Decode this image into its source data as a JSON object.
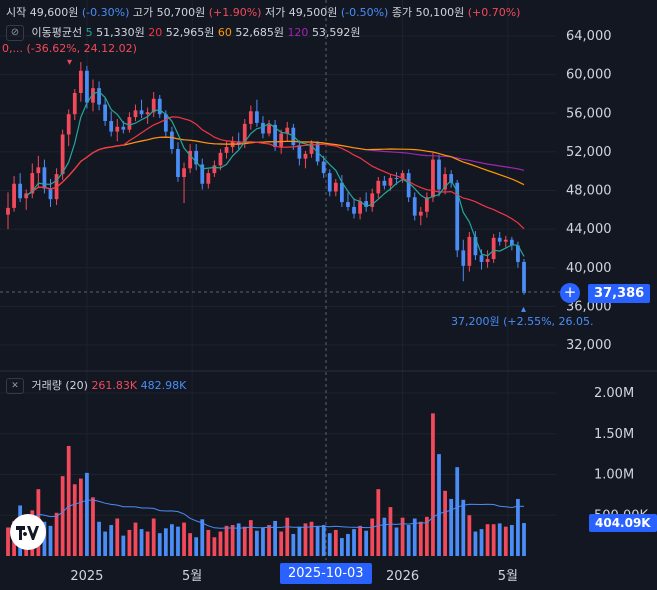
{
  "ohlc_bar": {
    "open_label": "시작",
    "open": "49,600원",
    "open_chg": "(-0.30%)",
    "high_label": "고가",
    "high": "50,700원",
    "high_chg": "(+1.90%)",
    "low_label": "저가",
    "low": "49,500원",
    "low_chg": "(-0.50%)",
    "close_label": "종가",
    "close": "50,100원",
    "close_chg": "(+0.70%)"
  },
  "ma_legend": {
    "title": "이동평균선",
    "items": [
      {
        "period": "5",
        "value": "51,330원",
        "color": "#26a69a"
      },
      {
        "period": "20",
        "value": "52,965원",
        "color": "#f23645"
      },
      {
        "period": "60",
        "value": "52,685원",
        "color": "#ff9800"
      },
      {
        "period": "120",
        "value": "53,592원",
        "color": "#9c27b0"
      }
    ]
  },
  "high_note": "0,... (-36.62%, 24.12.02)",
  "low_note": "37,200원 (+2.55%, 26.05.",
  "current_price": "37,386",
  "volume_legend": {
    "title": "거래량 (20)",
    "value1": "261.83K",
    "value2": "482.98K"
  },
  "volume_badge": "404.09K",
  "crosshair_date": "2025-10-03",
  "x_labels": [
    {
      "text": "2025",
      "date": "2025-01"
    },
    {
      "text": "5월",
      "date": "2025-05"
    },
    {
      "text": "2026",
      "date": "2026-01"
    },
    {
      "text": "5월",
      "date": "2026-05"
    }
  ],
  "price_axis": [
    "64,000",
    "60,000",
    "56,000",
    "52,000",
    "48,000",
    "44,000",
    "40,000",
    "36,000",
    "32,000"
  ],
  "volume_axis": [
    "2.00M",
    "1.50M",
    "1.00M",
    "500.00K"
  ],
  "colors": {
    "up": "#f24a5a",
    "down": "#4a8df7",
    "ma5": "#26a69a",
    "ma20": "#f23645",
    "ma60": "#ff9800",
    "ma120": "#9c27b0"
  },
  "chart_data": {
    "type": "candlestick",
    "period": "weekly",
    "x_range": [
      "2024-10",
      "2026-05"
    ],
    "price_ylim": [
      32000,
      64000
    ],
    "volume_ylim": [
      0,
      2000000
    ],
    "candles": [
      {
        "o": 45500,
        "h": 47800,
        "l": 44000,
        "c": 46200,
        "v": 350000
      },
      {
        "o": 46200,
        "h": 49500,
        "l": 45800,
        "c": 48700,
        "v": 430000
      },
      {
        "o": 48700,
        "h": 49800,
        "l": 46800,
        "c": 47200,
        "v": 620000
      },
      {
        "o": 47200,
        "h": 48100,
        "l": 46000,
        "c": 47700,
        "v": 300000
      },
      {
        "o": 47700,
        "h": 50800,
        "l": 47200,
        "c": 49800,
        "v": 560000
      },
      {
        "o": 49800,
        "h": 51600,
        "l": 48300,
        "c": 50400,
        "v": 820000
      },
      {
        "o": 50400,
        "h": 51200,
        "l": 47700,
        "c": 48200,
        "v": 420000
      },
      {
        "o": 48200,
        "h": 49200,
        "l": 46300,
        "c": 47100,
        "v": 370000
      },
      {
        "o": 47100,
        "h": 50300,
        "l": 46500,
        "c": 49700,
        "v": 530000
      },
      {
        "o": 49700,
        "h": 54300,
        "l": 49100,
        "c": 53800,
        "v": 980000
      },
      {
        "o": 53800,
        "h": 56400,
        "l": 52600,
        "c": 55900,
        "v": 1350000
      },
      {
        "o": 55900,
        "h": 58500,
        "l": 55300,
        "c": 58100,
        "v": 880000
      },
      {
        "o": 58100,
        "h": 61300,
        "l": 57200,
        "c": 60400,
        "v": 950000
      },
      {
        "o": 60400,
        "h": 60900,
        "l": 56500,
        "c": 57100,
        "v": 1020000
      },
      {
        "o": 57100,
        "h": 59500,
        "l": 56200,
        "c": 58600,
        "v": 720000
      },
      {
        "o": 58600,
        "h": 59300,
        "l": 56300,
        "c": 56900,
        "v": 420000
      },
      {
        "o": 56900,
        "h": 57600,
        "l": 54700,
        "c": 55200,
        "v": 300000
      },
      {
        "o": 55200,
        "h": 56200,
        "l": 53600,
        "c": 54100,
        "v": 380000
      },
      {
        "o": 54100,
        "h": 55400,
        "l": 53100,
        "c": 54600,
        "v": 460000
      },
      {
        "o": 54600,
        "h": 55200,
        "l": 53900,
        "c": 54300,
        "v": 250000
      },
      {
        "o": 54300,
        "h": 56100,
        "l": 54000,
        "c": 55600,
        "v": 320000
      },
      {
        "o": 55600,
        "h": 56900,
        "l": 55200,
        "c": 56300,
        "v": 410000
      },
      {
        "o": 56300,
        "h": 57400,
        "l": 55500,
        "c": 55900,
        "v": 330000
      },
      {
        "o": 55900,
        "h": 56600,
        "l": 54900,
        "c": 56100,
        "v": 300000
      },
      {
        "o": 56100,
        "h": 58200,
        "l": 55600,
        "c": 57500,
        "v": 460000
      },
      {
        "o": 57500,
        "h": 57900,
        "l": 55500,
        "c": 55900,
        "v": 280000
      },
      {
        "o": 55900,
        "h": 56300,
        "l": 53600,
        "c": 54100,
        "v": 340000
      },
      {
        "o": 54100,
        "h": 54600,
        "l": 51800,
        "c": 52300,
        "v": 390000
      },
      {
        "o": 52300,
        "h": 53000,
        "l": 48900,
        "c": 49400,
        "v": 360000
      },
      {
        "o": 49400,
        "h": 50900,
        "l": 46700,
        "c": 50300,
        "v": 410000
      },
      {
        "o": 50300,
        "h": 52800,
        "l": 49800,
        "c": 52100,
        "v": 280000
      },
      {
        "o": 52100,
        "h": 52800,
        "l": 50100,
        "c": 50700,
        "v": 230000
      },
      {
        "o": 50700,
        "h": 51300,
        "l": 48100,
        "c": 48700,
        "v": 450000
      },
      {
        "o": 48700,
        "h": 50200,
        "l": 48200,
        "c": 49800,
        "v": 320000
      },
      {
        "o": 49800,
        "h": 51100,
        "l": 49400,
        "c": 50600,
        "v": 230000
      },
      {
        "o": 50600,
        "h": 52300,
        "l": 50100,
        "c": 51900,
        "v": 300000
      },
      {
        "o": 51900,
        "h": 53100,
        "l": 51300,
        "c": 52500,
        "v": 370000
      },
      {
        "o": 52500,
        "h": 53600,
        "l": 51900,
        "c": 53100,
        "v": 380000
      },
      {
        "o": 53100,
        "h": 54000,
        "l": 52300,
        "c": 52800,
        "v": 400000
      },
      {
        "o": 52800,
        "h": 55400,
        "l": 52400,
        "c": 54900,
        "v": 360000
      },
      {
        "o": 54900,
        "h": 56800,
        "l": 54300,
        "c": 56200,
        "v": 440000
      },
      {
        "o": 56200,
        "h": 57400,
        "l": 54600,
        "c": 55000,
        "v": 310000
      },
      {
        "o": 55000,
        "h": 55700,
        "l": 53400,
        "c": 53900,
        "v": 350000
      },
      {
        "o": 53900,
        "h": 55300,
        "l": 53600,
        "c": 54800,
        "v": 380000
      },
      {
        "o": 54800,
        "h": 55300,
        "l": 52100,
        "c": 52500,
        "v": 430000
      },
      {
        "o": 52500,
        "h": 54300,
        "l": 51800,
        "c": 53900,
        "v": 300000
      },
      {
        "o": 53900,
        "h": 55100,
        "l": 53100,
        "c": 54500,
        "v": 470000
      },
      {
        "o": 54500,
        "h": 54900,
        "l": 52200,
        "c": 52700,
        "v": 270000
      },
      {
        "o": 52700,
        "h": 53200,
        "l": 50600,
        "c": 51300,
        "v": 360000
      },
      {
        "o": 51300,
        "h": 52100,
        "l": 50300,
        "c": 51800,
        "v": 400000
      },
      {
        "o": 51800,
        "h": 53200,
        "l": 51400,
        "c": 52900,
        "v": 420000
      },
      {
        "o": 52900,
        "h": 53100,
        "l": 50600,
        "c": 51000,
        "v": 360000
      },
      {
        "o": 51000,
        "h": 51600,
        "l": 49300,
        "c": 49800,
        "v": 380000
      },
      {
        "o": 49800,
        "h": 50200,
        "l": 47400,
        "c": 47900,
        "v": 280000
      },
      {
        "o": 47900,
        "h": 49200,
        "l": 47400,
        "c": 48800,
        "v": 320000
      },
      {
        "o": 48800,
        "h": 49600,
        "l": 46300,
        "c": 46800,
        "v": 220000
      },
      {
        "o": 46800,
        "h": 47800,
        "l": 45900,
        "c": 46300,
        "v": 270000
      },
      {
        "o": 46300,
        "h": 47200,
        "l": 45100,
        "c": 45600,
        "v": 330000
      },
      {
        "o": 45600,
        "h": 47300,
        "l": 45000,
        "c": 46900,
        "v": 370000
      },
      {
        "o": 46900,
        "h": 47800,
        "l": 45800,
        "c": 46300,
        "v": 310000
      },
      {
        "o": 46300,
        "h": 48200,
        "l": 45800,
        "c": 47700,
        "v": 460000
      },
      {
        "o": 47700,
        "h": 49400,
        "l": 47200,
        "c": 49000,
        "v": 820000
      },
      {
        "o": 49000,
        "h": 49500,
        "l": 48100,
        "c": 48500,
        "v": 470000
      },
      {
        "o": 48500,
        "h": 49600,
        "l": 48000,
        "c": 49300,
        "v": 600000
      },
      {
        "o": 49300,
        "h": 49900,
        "l": 48600,
        "c": 49200,
        "v": 350000
      },
      {
        "o": 49200,
        "h": 50100,
        "l": 48800,
        "c": 49800,
        "v": 470000
      },
      {
        "o": 49800,
        "h": 50200,
        "l": 46800,
        "c": 47300,
        "v": 380000
      },
      {
        "o": 47300,
        "h": 47800,
        "l": 44900,
        "c": 45400,
        "v": 460000
      },
      {
        "o": 45400,
        "h": 46300,
        "l": 44400,
        "c": 45800,
        "v": 420000
      },
      {
        "o": 45800,
        "h": 47800,
        "l": 45200,
        "c": 47300,
        "v": 480000
      },
      {
        "o": 47300,
        "h": 51900,
        "l": 46800,
        "c": 51200,
        "v": 1750000
      },
      {
        "o": 51200,
        "h": 51700,
        "l": 47400,
        "c": 48100,
        "v": 1250000
      },
      {
        "o": 48100,
        "h": 50400,
        "l": 47600,
        "c": 49700,
        "v": 800000
      },
      {
        "o": 49700,
        "h": 50100,
        "l": 48300,
        "c": 48800,
        "v": 700000
      },
      {
        "o": 48800,
        "h": 49100,
        "l": 41100,
        "c": 41800,
        "v": 1090000
      },
      {
        "o": 41800,
        "h": 42900,
        "l": 38600,
        "c": 40200,
        "v": 690000
      },
      {
        "o": 40200,
        "h": 43700,
        "l": 39600,
        "c": 43200,
        "v": 500000
      },
      {
        "o": 43200,
        "h": 43800,
        "l": 40800,
        "c": 41300,
        "v": 300000
      },
      {
        "o": 41300,
        "h": 41900,
        "l": 39800,
        "c": 40600,
        "v": 330000
      },
      {
        "o": 40600,
        "h": 41800,
        "l": 40000,
        "c": 40900,
        "v": 390000
      },
      {
        "o": 40900,
        "h": 43500,
        "l": 40500,
        "c": 43100,
        "v": 390000
      },
      {
        "o": 43100,
        "h": 43700,
        "l": 42300,
        "c": 42700,
        "v": 400000
      },
      {
        "o": 42700,
        "h": 43300,
        "l": 42100,
        "c": 42900,
        "v": 360000
      },
      {
        "o": 42900,
        "h": 43200,
        "l": 41800,
        "c": 42300,
        "v": 380000
      },
      {
        "o": 42300,
        "h": 42700,
        "l": 40000,
        "c": 40600,
        "v": 700000
      },
      {
        "o": 40600,
        "h": 40900,
        "l": 37200,
        "c": 37386,
        "v": 404090
      }
    ]
  }
}
